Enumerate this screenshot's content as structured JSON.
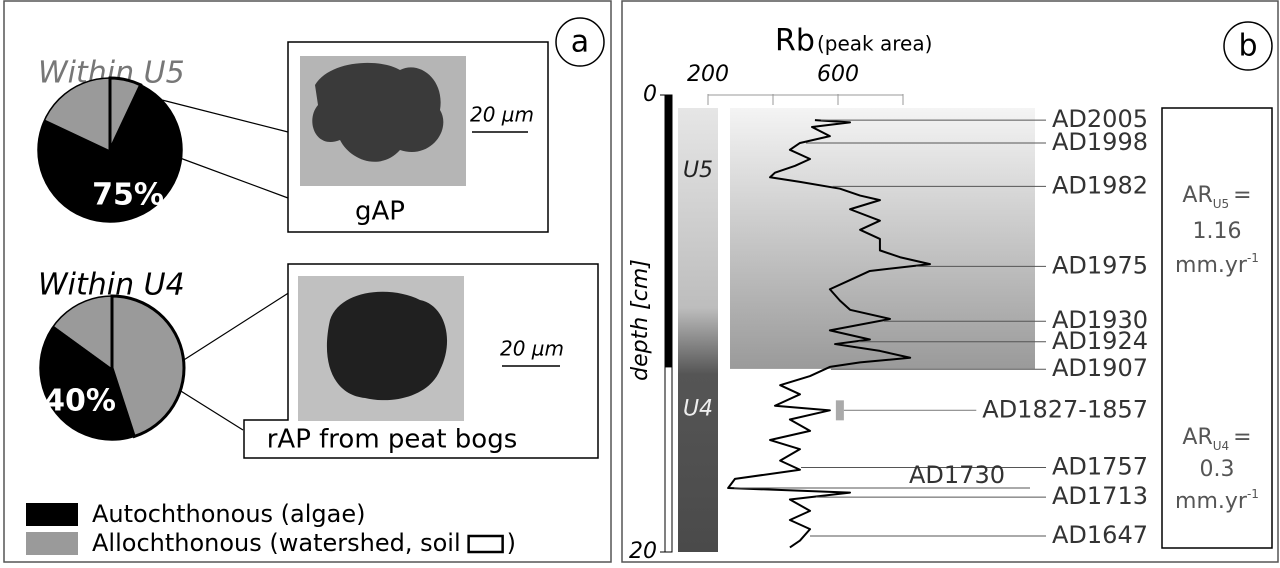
{
  "panel_a": {
    "label": "a",
    "callouts": [
      {
        "scale": "20 µm",
        "caption": "gAP"
      },
      {
        "scale": "20 µm",
        "caption": "rAP from peat bogs"
      }
    ],
    "legend": [
      {
        "label": "Autochthonous (algae)",
        "color": "#000000"
      },
      {
        "label": "Allochthonous (watershed, soil",
        "label_end": ")",
        "color": "#9a9a9a"
      }
    ]
  },
  "panel_b": {
    "label": "b",
    "rates": [
      {
        "symbol": "AR",
        "sub": "U5",
        "eq": "=",
        "value": 1.16,
        "unit": "mm.yr",
        "exp": "-1"
      },
      {
        "symbol": "AR",
        "sub": "U4",
        "eq": "=",
        "value": 0.3,
        "unit": "mm.yr",
        "exp": "-1"
      }
    ]
  },
  "chart_data": [
    {
      "type": "pie",
      "title": "Within U5",
      "values": [
        7,
        75,
        18
      ],
      "value_labels": [
        null,
        "75%",
        null
      ],
      "colors": [
        "#9a9a9a",
        "#000000",
        "#9a9a9a"
      ],
      "outlined": [
        true,
        false,
        false
      ]
    },
    {
      "type": "pie",
      "title": "Within U4",
      "values": [
        45,
        40,
        15
      ],
      "value_labels": [
        null,
        "40%",
        null
      ],
      "colors": [
        "#9a9a9a",
        "#000000",
        "#9a9a9a"
      ],
      "outlined": [
        true,
        false,
        false
      ]
    },
    {
      "type": "line",
      "xlabel": "Rb",
      "xlabel_note": "(peak area)",
      "ylabel": "depth [cm]",
      "xlim": [
        200,
        800
      ],
      "xticks": [
        200,
        600
      ],
      "xminor_ticks": [
        400,
        800
      ],
      "ylim": [
        0,
        20
      ],
      "yticks": [
        0,
        20
      ],
      "color": "#000000",
      "depth": [
        1.1,
        1.2,
        1.4,
        1.8,
        2.1,
        2.4,
        2.8,
        3.1,
        3.4,
        3.6,
        3.8,
        4.1,
        4.4,
        4.6,
        5.0,
        5.5,
        5.9,
        6.3,
        6.8,
        7.1,
        7.4,
        7.7,
        8.1,
        8.5,
        9.0,
        9.4,
        9.8,
        10.3,
        10.7,
        10.9,
        11.2,
        11.5,
        11.7,
        11.9,
        12.3,
        12.7,
        13.1,
        13.6,
        13.8,
        14.2,
        14.7,
        15.1,
        15.5,
        16.0,
        16.4,
        16.8,
        17.2,
        17.4,
        17.7,
        18.2,
        18.6,
        19.0,
        19.5,
        19.8
      ],
      "values": [
        529,
        637,
        520,
        575,
        483,
        452,
        514,
        468,
        406,
        391,
        483,
        606,
        668,
        729,
        637,
        729,
        668,
        729,
        729,
        791,
        883,
        698,
        637,
        575,
        606,
        637,
        760,
        575,
        698,
        591,
        729,
        822,
        668,
        575,
        514,
        422,
        483,
        406,
        575,
        452,
        514,
        391,
        483,
        422,
        483,
        283,
        262,
        637,
        452,
        514,
        452,
        514,
        483,
        452
      ],
      "annotations": [
        {
          "text": "AD2005",
          "depth": 1.1
        },
        {
          "text": "AD1998",
          "depth": 2.1
        },
        {
          "text": "AD1982",
          "depth": 4.0
        },
        {
          "text": "AD1975",
          "depth": 7.5
        },
        {
          "text": "AD1930",
          "depth": 9.9
        },
        {
          "text": "AD1924",
          "depth": 10.8
        },
        {
          "text": "AD1907",
          "depth": 12.0
        },
        {
          "text": "AD1827-1857",
          "depth": 13.8,
          "marker_color": "#aaaaaa"
        },
        {
          "text": "AD1757",
          "depth": 16.3
        },
        {
          "text": "AD1730",
          "depth": 17.2
        },
        {
          "text": "AD1713",
          "depth": 17.6
        },
        {
          "text": "AD1647",
          "depth": 19.3
        }
      ],
      "units": [
        {
          "text": "U5",
          "top": 0,
          "bottom": 11.9
        },
        {
          "text": "U4",
          "top": 11.9,
          "bottom": 20
        }
      ]
    }
  ]
}
